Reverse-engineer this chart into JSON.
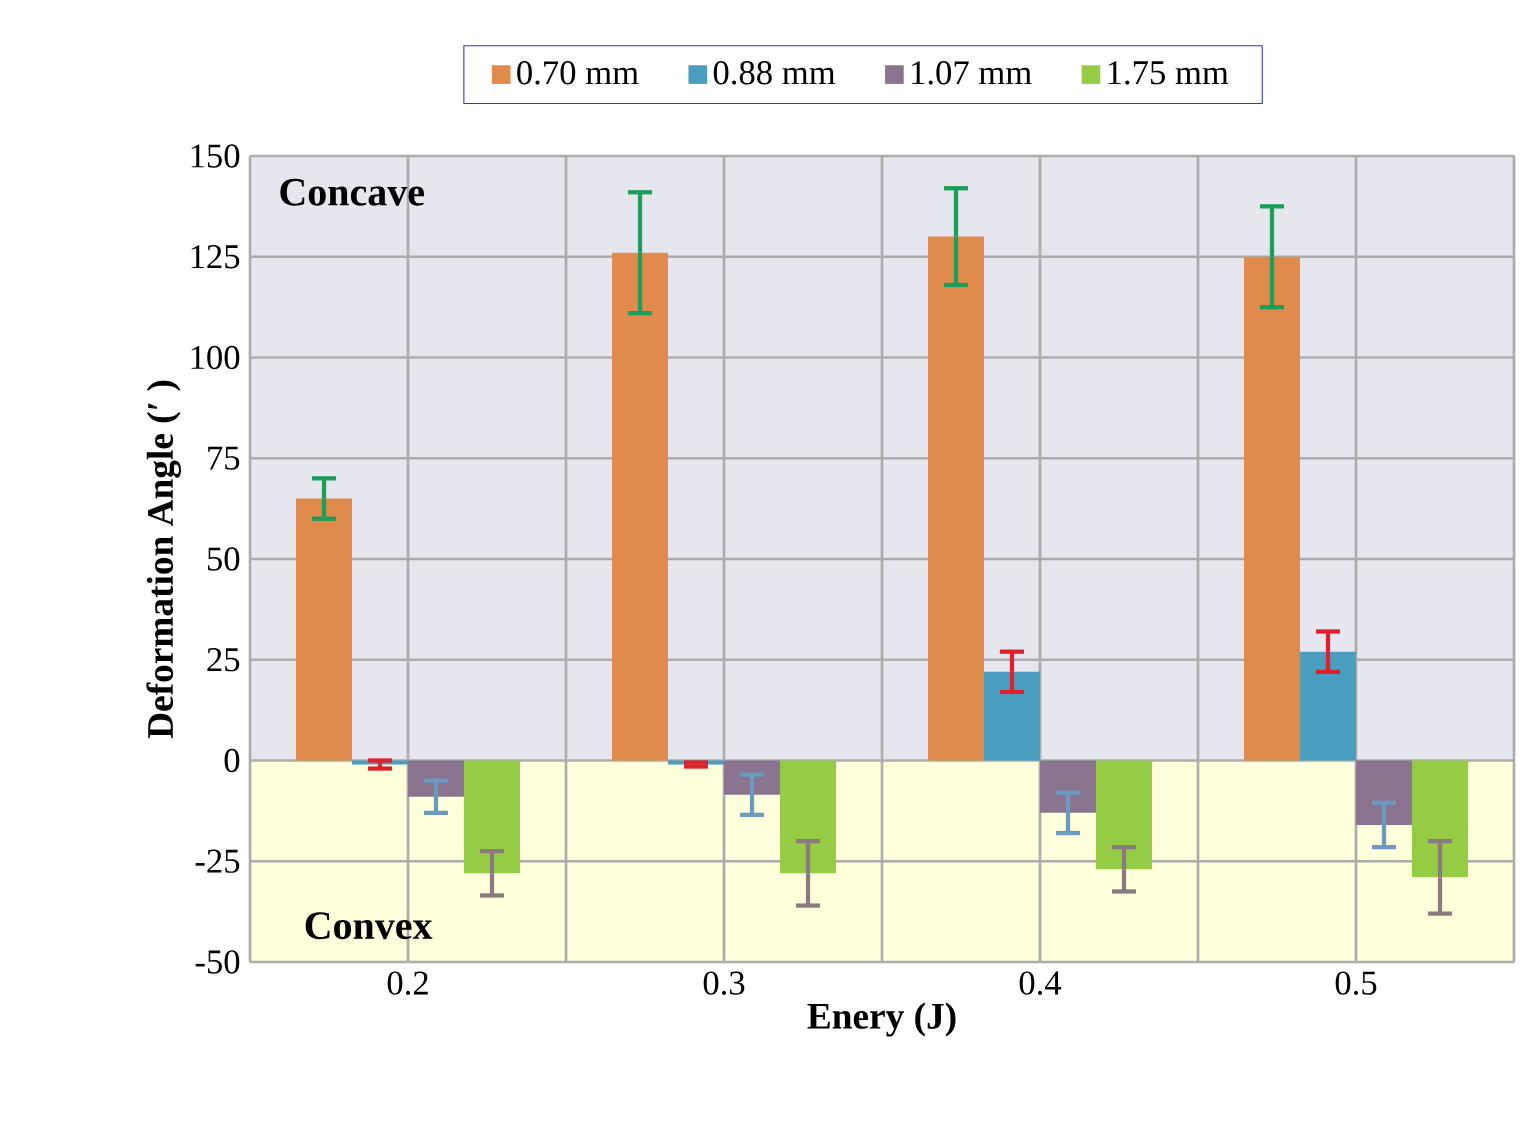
{
  "chart_data": {
    "type": "bar",
    "xlabel": "Enery (J)",
    "ylabel": "Deformation Angle (′ )",
    "categories": [
      "0.2",
      "0.3",
      "0.4",
      "0.5"
    ],
    "series": [
      {
        "name": "0.70 mm",
        "color": "#e08a4c",
        "values": [
          65,
          126,
          130,
          125
        ],
        "errors": [
          5,
          15,
          12,
          12.5
        ]
      },
      {
        "name": "0.88 mm",
        "color": "#4a9fc0",
        "values": [
          -1,
          -1,
          22,
          27
        ],
        "errors": [
          1,
          0.5,
          5,
          5
        ]
      },
      {
        "name": "1.07 mm",
        "color": "#8a7490",
        "values": [
          -9,
          -8.5,
          -13,
          -16
        ],
        "errors": [
          4,
          5,
          5,
          5.5
        ]
      },
      {
        "name": "1.75 mm",
        "color": "#96cc44",
        "values": [
          -28,
          -28,
          -27,
          -29
        ],
        "errors": [
          5.5,
          8,
          5.5,
          9
        ]
      }
    ],
    "ylim": [
      -50,
      150
    ],
    "yticks": [
      -50,
      -25,
      0,
      25,
      50,
      75,
      100,
      125,
      150
    ],
    "grid": true,
    "legend": "top",
    "bands": [
      {
        "axis": "y",
        "from": 0,
        "to": 150,
        "color": "#e6e6ef"
      },
      {
        "axis": "y",
        "from": -50,
        "to": 0,
        "color": "#ffffdc"
      }
    ],
    "annotations": [
      "Concave",
      "Convex"
    ]
  }
}
